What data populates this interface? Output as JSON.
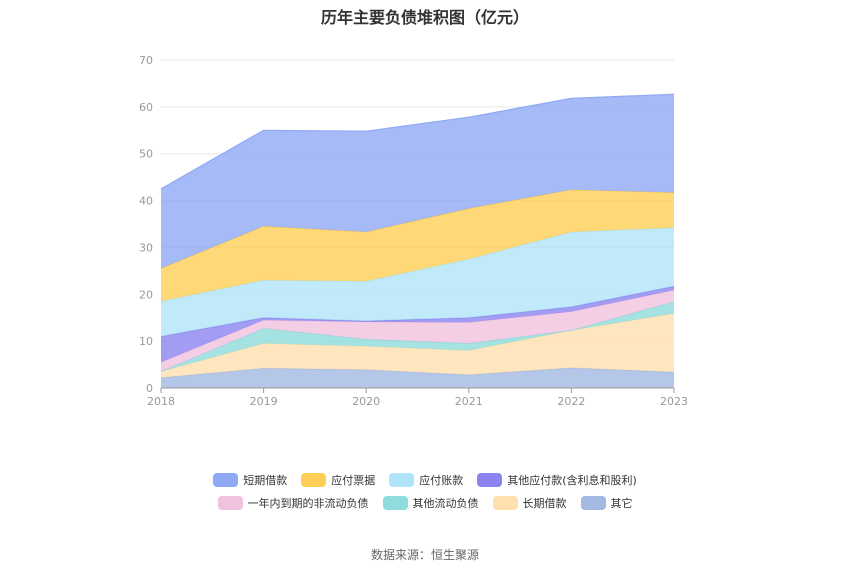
{
  "chart_data": {
    "type": "area",
    "stacked": true,
    "title": "历年主要负债堆积图（亿元）",
    "x": [
      "2018",
      "2019",
      "2020",
      "2021",
      "2022",
      "2023"
    ],
    "ylim": [
      0,
      70
    ],
    "yticks": [
      "0",
      "10",
      "20",
      "30",
      "40",
      "50",
      "60",
      "70"
    ],
    "grid": true,
    "legend_position": "bottom",
    "series": [
      {
        "name": "短期借款",
        "color": "#8fa9f5",
        "values": [
          17.0,
          20.5,
          21.5,
          19.5,
          19.5,
          21.0
        ]
      },
      {
        "name": "应付票据",
        "color": "#ffcf55",
        "values": [
          7.0,
          11.5,
          10.5,
          10.8,
          9.0,
          7.5
        ]
      },
      {
        "name": "应付账款",
        "color": "#b0e3f8",
        "values": [
          7.5,
          8.0,
          8.5,
          12.5,
          16.0,
          12.5
        ]
      },
      {
        "name": "其他应付款(含利息和股利)",
        "color": "#8b84f0",
        "values": [
          5.5,
          0.5,
          0.2,
          1.0,
          1.0,
          0.8
        ]
      },
      {
        "name": "一年内到期的非流动负债",
        "color": "#f0c2df",
        "values": [
          2.0,
          1.8,
          3.7,
          4.5,
          4.0,
          2.5
        ]
      },
      {
        "name": "其他流动负债",
        "color": "#8edcdc",
        "values": [
          0.0,
          3.2,
          1.5,
          1.5,
          0.0,
          2.5
        ]
      },
      {
        "name": "长期借款",
        "color": "#ffe0ae",
        "values": [
          1.3,
          5.3,
          5.0,
          5.2,
          8.0,
          12.5
        ]
      },
      {
        "name": "其它",
        "color": "#a3b9e2",
        "values": [
          2.2,
          4.2,
          3.9,
          2.8,
          4.3,
          3.4
        ]
      }
    ],
    "source": "数据来源：恒生聚源"
  }
}
